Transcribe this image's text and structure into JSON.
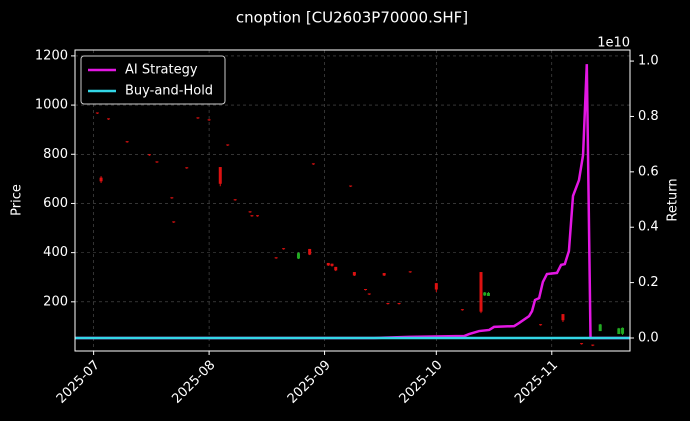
{
  "chart_data": {
    "type": "candlestick",
    "title": "cnoption [CU2603P70000.SHF]",
    "ylabel": "Price",
    "y2label": "Return",
    "y2_offset_label": "1e10",
    "xlim": [
      -5,
      144
    ],
    "xticks": [
      {
        "value": 0,
        "label": "2025-07"
      },
      {
        "value": 31,
        "label": "2025-08"
      },
      {
        "value": 62,
        "label": "2025-09"
      },
      {
        "value": 92,
        "label": "2025-10"
      },
      {
        "value": 123,
        "label": "2025-11"
      }
    ],
    "ylim": [
      0,
      1224
    ],
    "yticks": [
      200,
      400,
      600,
      800,
      1000,
      1200
    ],
    "y2lim": [
      -0.047,
      1.04
    ],
    "y2ticks": [
      {
        "value": 0,
        "label": "0.0"
      },
      {
        "value": 0.2,
        "label": "0.2"
      },
      {
        "value": 0.4,
        "label": "0.4"
      },
      {
        "value": 0.6,
        "label": "0.6"
      },
      {
        "value": 0.8,
        "label": "0.8"
      },
      {
        "value": 1,
        "label": "1.0"
      }
    ],
    "grid": true,
    "legend": "upper left",
    "up_color": "#22aa22",
    "down_color": "#dd1111",
    "candles": {
      "x": [
        1,
        2,
        4,
        9,
        15,
        17,
        21,
        21.5,
        25,
        28,
        31,
        34,
        36,
        38,
        42,
        42.5,
        44,
        49,
        51,
        55,
        58,
        59,
        63,
        64,
        65,
        69,
        70,
        73,
        74,
        78,
        79,
        82,
        85,
        92,
        99,
        104,
        105,
        106,
        120,
        126,
        131,
        134,
        136,
        141,
        142
      ],
      "open": [
        970,
        705,
        946,
        853,
        800,
        771,
        625,
        527,
        747,
        950,
        942,
        748,
        840,
        617,
        568,
        552,
        552,
        381,
        418,
        376,
        415,
        763,
        358,
        355,
        342,
        673,
        321,
        252,
        234,
        317,
        195,
        195,
        324,
        276,
        170,
        321,
        226,
        224,
        109,
        150,
        32,
        26,
        81,
        69,
        70
      ],
      "high": [
        970,
        711,
        946,
        853,
        800,
        771,
        625,
        527,
        747,
        950,
        942,
        748,
        840,
        617,
        568,
        552,
        552,
        381,
        418,
        402,
        415,
        763,
        358,
        355,
        342,
        673,
        321,
        252,
        234,
        317,
        195,
        195,
        324,
        276,
        170,
        321,
        240,
        240,
        109,
        150,
        32,
        26,
        110,
        94,
        96
      ],
      "low": [
        964,
        683,
        940,
        847,
        794,
        765,
        619,
        521,
        741,
        944,
        936,
        670,
        834,
        611,
        562,
        546,
        546,
        375,
        412,
        374,
        390,
        757,
        346,
        343,
        325,
        667,
        305,
        246,
        228,
        305,
        189,
        189,
        318,
        240,
        164,
        154,
        224,
        224,
        103,
        118,
        26,
        20,
        81,
        69,
        65
      ],
      "close": [
        967,
        690,
        943,
        850,
        797,
        768,
        622,
        524,
        744,
        947,
        939,
        680,
        837,
        614,
        565,
        549,
        549,
        378,
        415,
        398,
        392,
        760,
        348,
        346,
        328,
        670,
        307,
        249,
        231,
        307,
        192,
        192,
        321,
        250,
        167,
        160,
        238,
        236,
        106,
        125,
        29,
        23,
        108,
        92,
        94
      ]
    },
    "series": [
      {
        "name": "AI Strategy",
        "color": "#e317e3",
        "axis": "y2",
        "x": [
          -5,
          75.3,
          84.7,
          99.5,
          100.8,
          103.5,
          106.2,
          107.5,
          112.9,
          114.2,
          116.9,
          117.7,
          118.5,
          119.6,
          120.6,
          121.7,
          124.4,
          125.5,
          126.5,
          127.6,
          128.7,
          130.3,
          131.4,
          132.4,
          133.4,
          144
        ],
        "values": [
          0,
          0,
          0.004,
          0.007,
          0.014,
          0.025,
          0.029,
          0.04,
          0.043,
          0.054,
          0.079,
          0.097,
          0.137,
          0.144,
          0.202,
          0.231,
          0.235,
          0.264,
          0.267,
          0.314,
          0.513,
          0.57,
          0.661,
          0.989,
          0,
          0
        ]
      },
      {
        "name": "Buy-and-Hold",
        "color": "#33d6e6",
        "axis": "y2",
        "x": [
          -5,
          144
        ],
        "values": [
          0,
          0
        ]
      }
    ]
  }
}
